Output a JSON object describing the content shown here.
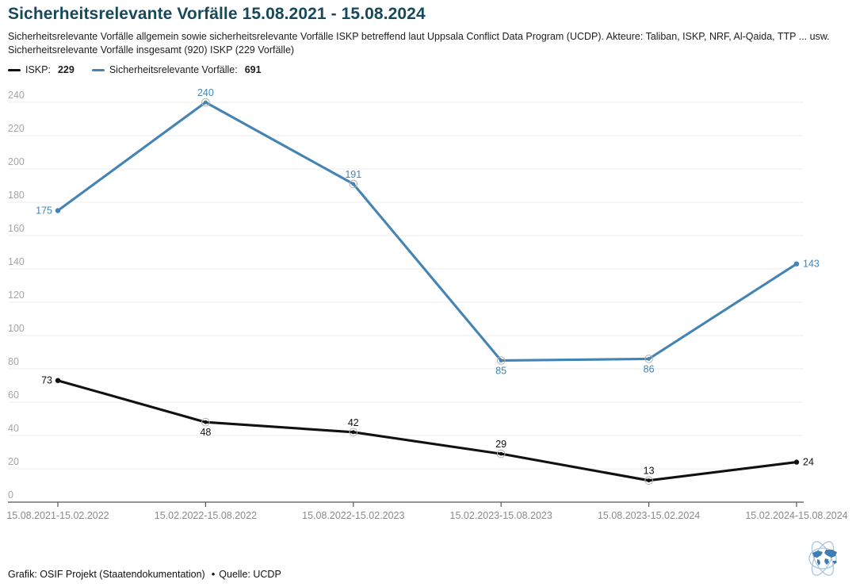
{
  "title": "Sicherheitsrelevante Vorfälle 15.08.2021 - 15.08.2024",
  "subtitle": {
    "line1": "Sicherheitsrelevante Vorfälle allgemein sowie sicherheitsrelevante Vorfälle ISKP betreffend laut Uppsala Conflict Data Program (UCDP). Akteure: Taliban, ISKP, NRF, Al-Qaida, TTP ... usw.",
    "line2": "Sicherheitsrelevante Vorfälle insgesamt (920) ISKP (229 Vorfälle)"
  },
  "legend": {
    "items": [
      {
        "label": "ISKP:",
        "value": "229",
        "color": "#111111"
      },
      {
        "label": "Sicherheitsrelevante Vorfälle:",
        "value": "691",
        "color": "#4484b5"
      }
    ]
  },
  "chart_data": {
    "type": "line",
    "categories": [
      "15.08.2021-15.02.2022",
      "15.02.2022-15.08.2022",
      "15.08.2022-15.02.2023",
      "15.02.2023-15.08.2023",
      "15.08.2023-15.02.2024",
      "15.02.2024-15.08.2024"
    ],
    "series": [
      {
        "name": "Sicherheitsrelevante Vorfälle",
        "total": 691,
        "color": "#4484b5",
        "values": [
          175,
          240,
          191,
          85,
          86,
          143
        ],
        "label_positions": [
          "left",
          "above",
          "above",
          "below",
          "below",
          "right"
        ]
      },
      {
        "name": "ISKP",
        "total": 229,
        "color": "#111111",
        "values": [
          73,
          48,
          42,
          29,
          13,
          24
        ],
        "label_positions": [
          "left",
          "below",
          "above",
          "above",
          "above",
          "right"
        ]
      }
    ],
    "title": "Sicherheitsrelevante Vorfälle 15.08.2021 - 15.08.2024",
    "xlabel": "",
    "ylabel": "",
    "ylim": [
      0,
      240
    ],
    "ytick_step": 20,
    "grid": true,
    "legend_position": "top-left",
    "colors": {
      "gridline": "#ededed",
      "axis": "#555555",
      "y_tick_label": "#a6a6a6",
      "x_tick_label": "#8a8a8a",
      "marker_ring": "#b5b5b5"
    }
  },
  "footer": {
    "credit": "Grafik: OSIF Projekt (Staatendokumentation)",
    "bullet": "•",
    "source": "Quelle: UCDP"
  }
}
